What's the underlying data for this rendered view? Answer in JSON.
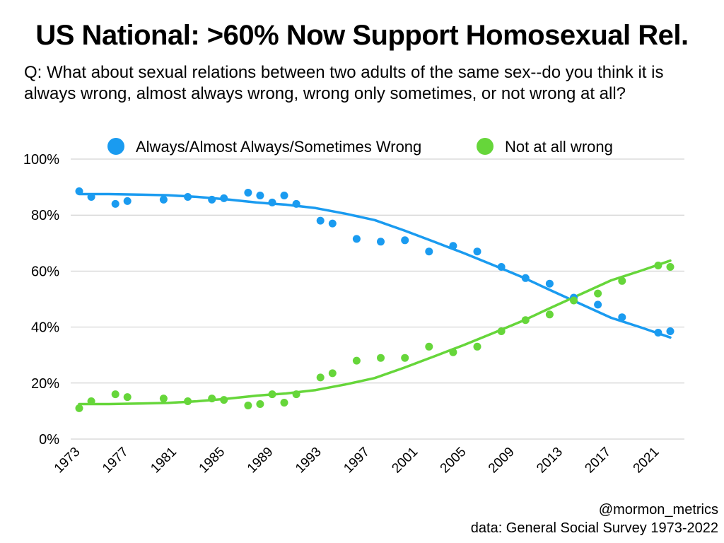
{
  "title": "US National: >60% Now Support Homosexual Rel.",
  "question": "Q: What about sexual relations between two adults of the same sex--do you think it is always wrong, almost always wrong, wrong only sometimes, or not wrong at all?",
  "credits": {
    "handle": "@mormon_metrics",
    "source": "data: General Social Survey 1973-2022"
  },
  "chart_data": {
    "type": "scatter",
    "title": "US National: >60% Now Support Homosexual Rel.",
    "xlabel": "",
    "ylabel": "",
    "xlim": [
      1973,
      2022
    ],
    "ylim": [
      0,
      100
    ],
    "grid": true,
    "legend_position": "top",
    "y_ticks": [
      {
        "value": 0,
        "label": "0%"
      },
      {
        "value": 20,
        "label": "20%"
      },
      {
        "value": 40,
        "label": "40%"
      },
      {
        "value": 60,
        "label": "60%"
      },
      {
        "value": 80,
        "label": "80%"
      },
      {
        "value": 100,
        "label": "100%"
      }
    ],
    "x_ticks": [
      "1973",
      "1977",
      "1981",
      "1985",
      "1989",
      "1993",
      "1997",
      "2001",
      "2005",
      "2009",
      "2013",
      "2017",
      "2021"
    ],
    "series": [
      {
        "name": "Always/Almost Always/Sometimes Wrong",
        "color": "#1a9bf0",
        "x": [
          1973,
          1974,
          1976,
          1977,
          1980,
          1982,
          1984,
          1985,
          1987,
          1988,
          1989,
          1990,
          1991,
          1993,
          1994,
          1996,
          1998,
          2000,
          2002,
          2004,
          2006,
          2008,
          2010,
          2012,
          2014,
          2016,
          2018,
          2021,
          2022
        ],
        "values": [
          88.5,
          86.5,
          84,
          85,
          85.5,
          86.5,
          85.5,
          86,
          88,
          87,
          84.5,
          87,
          84,
          78,
          77,
          71.5,
          70.5,
          71,
          67,
          69,
          67,
          61.5,
          57.5,
          55.5,
          50.5,
          48,
          43.5,
          38,
          38.5
        ],
        "trend": [
          87.5,
          87.5,
          87.3,
          87.1,
          86.5,
          85.6,
          84.5,
          83.7,
          82.5,
          80.5,
          78.2,
          74.5,
          70.5,
          66.5,
          62.2,
          57.8,
          52.9,
          48.1,
          43.3,
          39.9,
          36.3
        ]
      },
      {
        "name": "Not at all wrong",
        "color": "#66d63a",
        "x": [
          1973,
          1974,
          1976,
          1977,
          1980,
          1982,
          1984,
          1985,
          1987,
          1988,
          1989,
          1990,
          1991,
          1993,
          1994,
          1996,
          1998,
          2000,
          2002,
          2004,
          2006,
          2008,
          2010,
          2012,
          2014,
          2016,
          2018,
          2021,
          2022
        ],
        "values": [
          11,
          13.5,
          16,
          15,
          14.5,
          13.5,
          14.5,
          14,
          12,
          12.5,
          16,
          13,
          16,
          22,
          23.5,
          28,
          29,
          29,
          33,
          31,
          33,
          38.5,
          42.5,
          44.5,
          49.5,
          52,
          56.5,
          62,
          61.5
        ],
        "trend": [
          12.5,
          12.5,
          12.7,
          12.9,
          13.5,
          14.4,
          15.5,
          16.3,
          17.5,
          19.5,
          21.8,
          25.5,
          29.5,
          33.5,
          37.8,
          42.2,
          47.1,
          51.9,
          56.7,
          60.1,
          63.7
        ]
      }
    ],
    "trend_x": [
      1973,
      1975.45,
      1977.9,
      1980.35,
      1982.8,
      1985.25,
      1987.7,
      1990.15,
      1992.6,
      1995.05,
      1997.5,
      1999.95,
      2002.4,
      2004.85,
      2007.3,
      2009.75,
      2012.2,
      2014.65,
      2017.1,
      2019.55,
      2022
    ]
  }
}
